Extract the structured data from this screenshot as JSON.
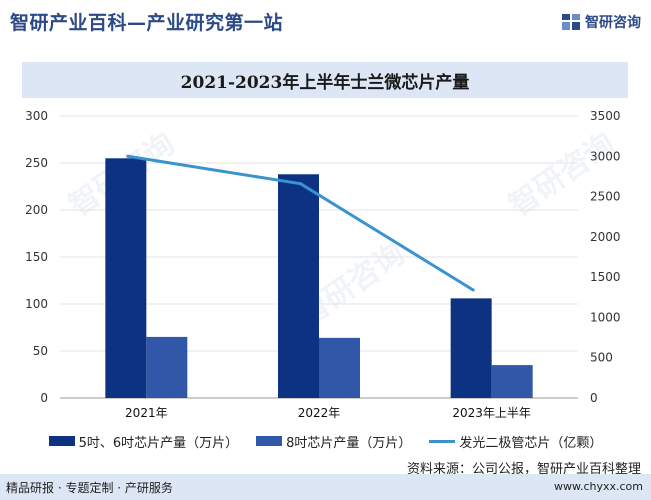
{
  "header": {
    "title": "智研产业百科—产业研究第一站",
    "brand": "智研咨询"
  },
  "watermark": "智研咨询",
  "colors": {
    "series1": "#0e3282",
    "series2": "#3158a8",
    "series3": "#3a92cf"
  },
  "chart_data": {
    "type": "bar",
    "title": "2021-2023年上半年士兰微芯片产量",
    "categories": [
      "2021年",
      "2022年",
      "2023年上半年"
    ],
    "series": [
      {
        "name": "5吋、6吋芯片产量（万片）",
        "type": "bar",
        "axis": "left",
        "values": [
          255,
          238,
          106
        ]
      },
      {
        "name": "8吋芯片产量（万片）",
        "type": "bar",
        "axis": "left",
        "values": [
          65,
          64,
          35
        ]
      },
      {
        "name": "发光二极管芯片（亿颗）",
        "type": "line",
        "axis": "right",
        "values": [
          3000,
          2660,
          1340
        ]
      }
    ],
    "ylim_left": [
      0,
      300
    ],
    "yticks_left": [
      0,
      50,
      100,
      150,
      200,
      250,
      300
    ],
    "ylim_right": [
      0,
      3500
    ],
    "yticks_right": [
      0,
      500,
      1000,
      1500,
      2000,
      2500,
      3000,
      3500
    ],
    "grid": true,
    "legend": "bottom"
  },
  "source": "资料来源：公司公报，智研产业百科整理",
  "footer": {
    "left": "精品研报 · 专题定制 · 产研服务",
    "right": "www.chyxx.com"
  }
}
